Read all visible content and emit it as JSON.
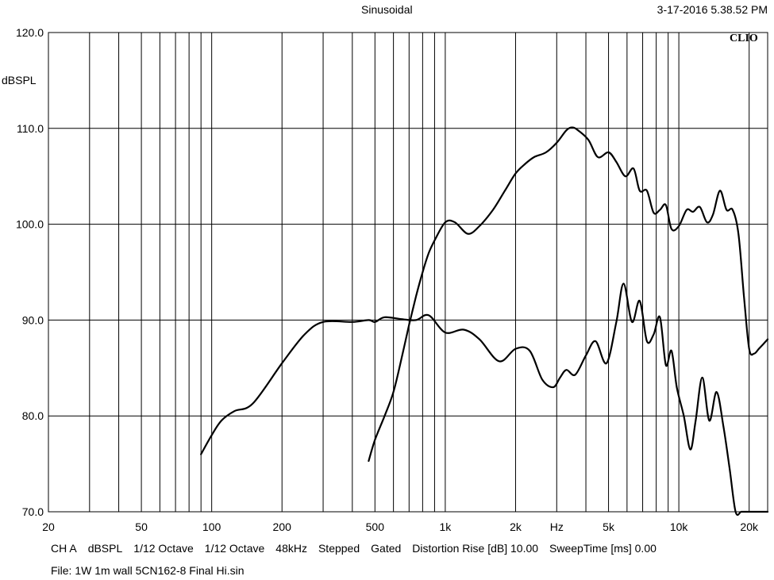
{
  "header": {
    "title": "Sinusoidal",
    "timestamp": "3-17-2016 5.38.52 PM",
    "logo": "CLIO"
  },
  "footer": {
    "line1": [
      "CH A",
      "dBSPL",
      "1/12 Octave",
      "1/12 Octave",
      "48kHz",
      "Stepped",
      "Gated",
      "Distortion Rise [dB] 10.00",
      "SweepTime [ms] 0.00"
    ],
    "file": "File: 1W 1m wall 5CN162-8 Final Hi.sin"
  },
  "chart_data": {
    "type": "line",
    "title": "Sinusoidal",
    "ylabel": "dBSPL",
    "xlabel": "Hz",
    "xscale": "log",
    "xlim": [
      20,
      24000
    ],
    "ylim": [
      70,
      120
    ],
    "grid": true,
    "x_tick_labels": [
      {
        "value": 20,
        "label": "20"
      },
      {
        "value": 50,
        "label": "50"
      },
      {
        "value": 100,
        "label": "100"
      },
      {
        "value": 200,
        "label": "200"
      },
      {
        "value": 500,
        "label": "500"
      },
      {
        "value": 1000,
        "label": "1k"
      },
      {
        "value": 2000,
        "label": "2k"
      },
      {
        "value": 3000,
        "label": "Hz"
      },
      {
        "value": 5000,
        "label": "5k"
      },
      {
        "value": 10000,
        "label": "10k"
      },
      {
        "value": 20000,
        "label": "20k"
      }
    ],
    "y_tick_labels": [
      "70.0",
      "80.0",
      "90.0",
      "100.0",
      "110.0",
      "120.0"
    ],
    "series": [
      {
        "x": [
          90,
          100,
          110,
          125,
          150,
          200,
          250,
          300,
          400,
          470,
          500,
          550,
          650,
          750,
          850,
          1000,
          1200,
          1400,
          1700,
          2000,
          2300,
          2600,
          2900,
          3100,
          3300,
          3600,
          4000,
          4400,
          4900,
          5400,
          5800,
          6300,
          6800,
          7300,
          7800,
          8300,
          8800,
          9300,
          9800,
          10500,
          11200,
          11800,
          12600,
          13500,
          14500,
          15500,
          16500,
          17500,
          18500,
          19500,
          20500,
          21200,
          22000,
          23000,
          24000
        ],
        "values": [
          76,
          78,
          79.5,
          80.5,
          81.3,
          85.5,
          88.5,
          89.8,
          89.8,
          90,
          89.8,
          90.3,
          90.1,
          90,
          90.5,
          88.7,
          89,
          88,
          85.7,
          87,
          86.8,
          83.8,
          83,
          84,
          84.8,
          84.3,
          86.3,
          87.8,
          85.5,
          89.8,
          93.8,
          89.8,
          92,
          87.8,
          88.5,
          90.3,
          85.3,
          86.8,
          83,
          80,
          76.5,
          79.5,
          84,
          79.5,
          82.5,
          79,
          74.5,
          70,
          70,
          70,
          70,
          70,
          70,
          70,
          70
        ]
      },
      {
        "x": [
          470,
          500,
          550,
          600,
          650,
          700,
          750,
          800,
          850,
          900,
          1000,
          1100,
          1250,
          1400,
          1600,
          1800,
          2000,
          2200,
          2400,
          2700,
          3000,
          3300,
          3500,
          3700,
          4100,
          4500,
          5000,
          5400,
          5900,
          6400,
          6800,
          7300,
          7800,
          8300,
          8800,
          9300,
          10000,
          10800,
          11500,
          12300,
          13200,
          14000,
          15000,
          16000,
          17000,
          18000,
          19000,
          20000,
          21000,
          22000,
          23000,
          24000
        ],
        "values": [
          75.3,
          77.5,
          80,
          82.5,
          86,
          89.5,
          92.5,
          95,
          97,
          98.3,
          100.2,
          100.2,
          99,
          99.8,
          101.5,
          103.5,
          105.3,
          106.3,
          107,
          107.5,
          108.5,
          109.8,
          110.1,
          109.8,
          108.8,
          107,
          107.5,
          106.5,
          105,
          105.8,
          103.5,
          103.5,
          101.2,
          101.5,
          102,
          99.5,
          99.8,
          101.5,
          101.3,
          101.8,
          100.2,
          101,
          103.5,
          101.5,
          101.5,
          99,
          92.5,
          87,
          86.5,
          87,
          87.5,
          88
        ]
      }
    ]
  }
}
